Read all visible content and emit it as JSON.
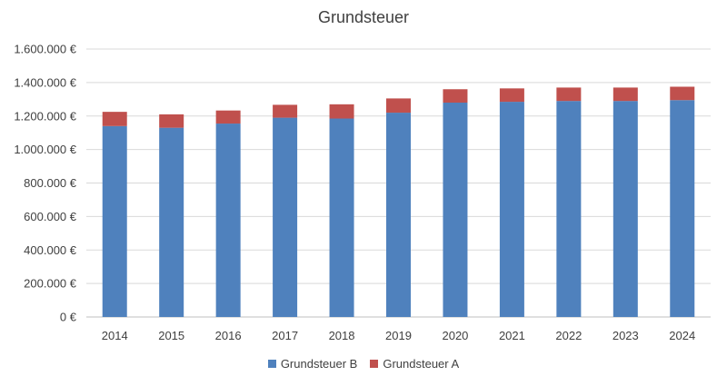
{
  "chart_data": {
    "type": "bar",
    "stacked": true,
    "title": "Grundsteuer",
    "xlabel": "",
    "ylabel": "",
    "categories": [
      "2014",
      "2015",
      "2016",
      "2017",
      "2018",
      "2019",
      "2020",
      "2021",
      "2022",
      "2023",
      "2024"
    ],
    "series": [
      {
        "name": "Grundsteuer B",
        "color": "#4f81bd",
        "values": [
          1140000,
          1130000,
          1155000,
          1190000,
          1185000,
          1220000,
          1280000,
          1285000,
          1290000,
          1290000,
          1295000
        ]
      },
      {
        "name": "Grundsteuer A",
        "color": "#c0504d",
        "values": [
          85000,
          80000,
          78000,
          77000,
          85000,
          85000,
          80000,
          80000,
          80000,
          80000,
          80000
        ]
      }
    ],
    "ylim": [
      0,
      1600000
    ],
    "yticks": [
      0,
      200000,
      400000,
      600000,
      800000,
      1000000,
      1200000,
      1400000,
      1600000
    ],
    "ytick_labels": [
      "0 €",
      "200.000 €",
      "400.000 €",
      "600.000 €",
      "800.000 €",
      "1.000.000 €",
      "1.200.000 €",
      "1.400.000 €",
      "1.600.000 €"
    ],
    "grid": true,
    "legend_position": "bottom"
  }
}
